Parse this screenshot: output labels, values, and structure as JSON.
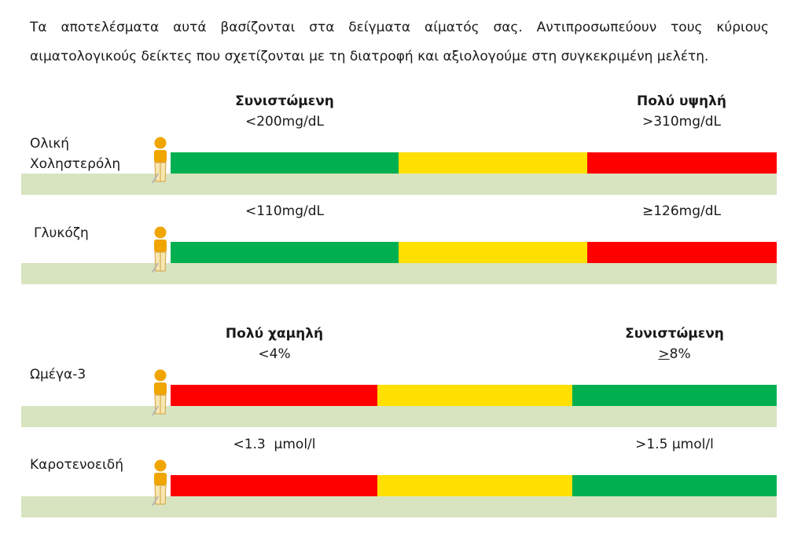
{
  "intro": "Τα αποτελέσματα αυτά βασίζονται στα δείγματα αίματός σας. Αντιπροσωπεύουν τους κύριους αιματολογικούς δείκτες που σχετίζονται με τη διατροφή και αξιολογούμε στη συγκεκριμένη μελέτη.",
  "colors": {
    "green": "#00b050",
    "yellow": "#ffe000",
    "red": "#ff0000",
    "ground": "#d8e4bf",
    "person": "#f0a500"
  },
  "rows": [
    {
      "label": "Ολική\nΧοληστερόλη",
      "left_title": "Συνιστώμενη",
      "left_value": "<200mg/dL",
      "right_title": "Πολύ υψηλή",
      "right_value": ">310mg/dL",
      "segments": [
        "green",
        "yellow",
        "red"
      ]
    },
    {
      "label": "Γλυκόζη",
      "left_title": "",
      "left_value": "<110mg/dL",
      "right_title": "",
      "right_value": "≥126mg/dL",
      "segments": [
        "green",
        "yellow",
        "red"
      ]
    },
    {
      "label": "Ωμέγα-3",
      "left_title": "Πολύ χαμηλή",
      "left_value": "<4%",
      "right_title": "Συνιστώμενη",
      "right_value_prefix": ">",
      "right_value": "8%",
      "segments": [
        "red",
        "yellow",
        "green"
      ]
    },
    {
      "label": "Καροτενοειδή",
      "left_title": "",
      "left_value": "<1.3  μmol/l",
      "right_title": "",
      "right_value": ">1.5 μmol/l",
      "segments": [
        "red",
        "yellow",
        "green"
      ]
    }
  ]
}
